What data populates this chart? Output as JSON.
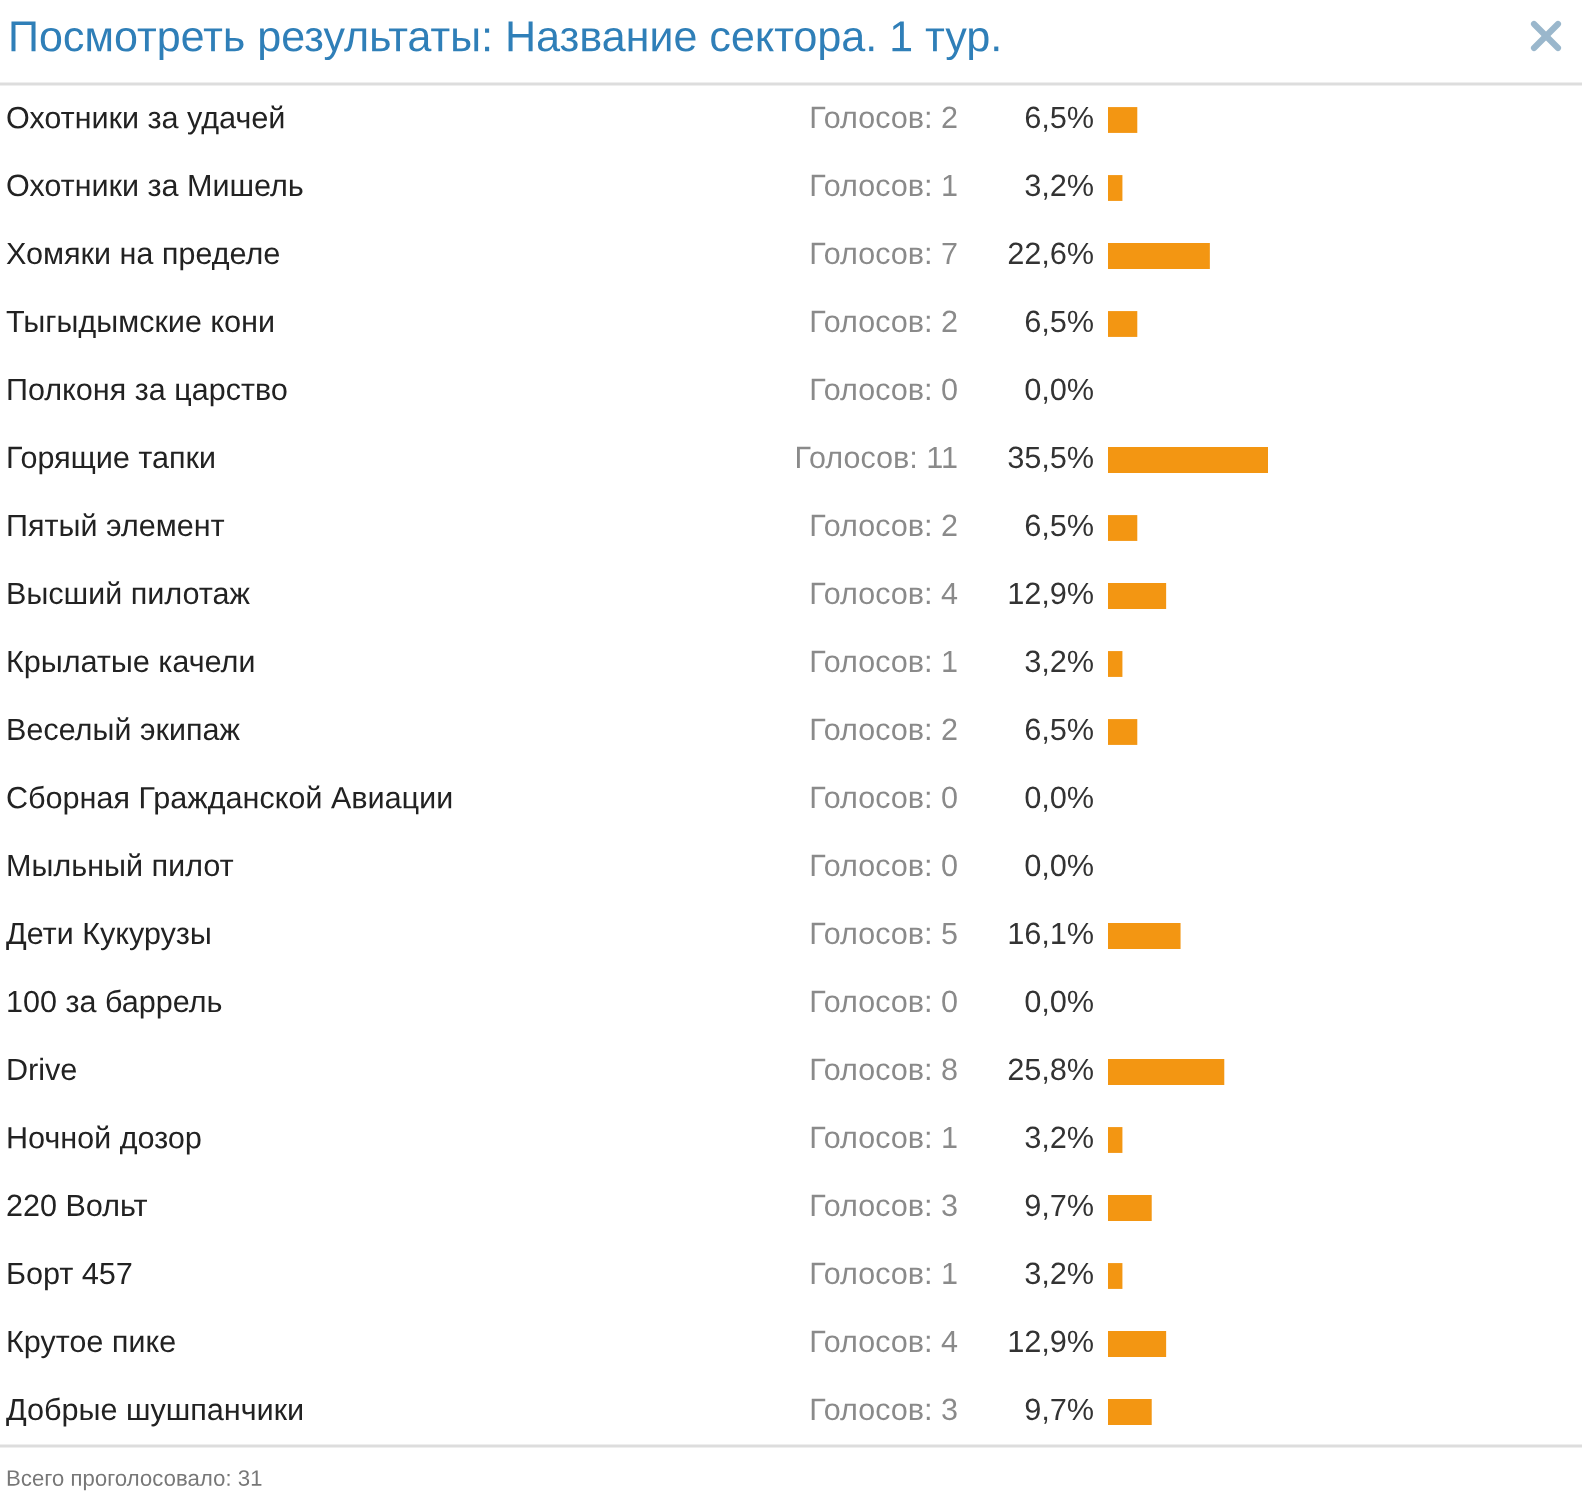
{
  "chart_data": {
    "type": "bar",
    "orientation": "horizontal",
    "title": "Посмотреть результаты: Название сектора. 1 тур.",
    "categories": [
      "Охотники за удачей",
      "Охотники за Мишель",
      "Хомяки на пределе",
      "Тыгыдымские кони",
      "Полконя за царство",
      "Горящие тапки",
      "Пятый элемент",
      "Высший пилотаж",
      "Крылатые качели",
      "Веселый экипаж",
      "Сборная Гражданской Авиации",
      "Мыльный пилот",
      "Дети Кукурузы",
      "100 за баррель",
      "Drive",
      "Ночной дозор",
      "220 Вольт",
      "Борт 457",
      "Крутое пике",
      "Добрые шушпанчики"
    ],
    "values": [
      6.5,
      3.2,
      22.6,
      6.5,
      0.0,
      35.5,
      6.5,
      12.9,
      3.2,
      6.5,
      0.0,
      0.0,
      16.1,
      0.0,
      25.8,
      3.2,
      9.7,
      3.2,
      12.9,
      9.7
    ],
    "value_labels": [
      "6,5%",
      "3,2%",
      "22,6%",
      "6,5%",
      "0,0%",
      "35,5%",
      "6,5%",
      "12,9%",
      "3,2%",
      "6,5%",
      "0,0%",
      "0,0%",
      "16,1%",
      "0,0%",
      "25,8%",
      "3,2%",
      "9,7%",
      "3,2%",
      "12,9%",
      "9,7%"
    ],
    "color": "#f39612",
    "annotations": [
      "Голосов: 2",
      "Голосов: 1",
      "Голосов: 7",
      "Голосов: 2",
      "Голосов: 0",
      "Голосов: 11",
      "Голосов: 2",
      "Голосов: 4",
      "Голосов: 1",
      "Голосов: 2",
      "Голосов: 0",
      "Голосов: 0",
      "Голосов: 5",
      "Голосов: 0",
      "Голосов: 8",
      "Голосов: 1",
      "Голосов: 3",
      "Голосов: 1",
      "Голосов: 4",
      "Голосов: 3",
      "Всего проголосовало: 31"
    ]
  }
}
